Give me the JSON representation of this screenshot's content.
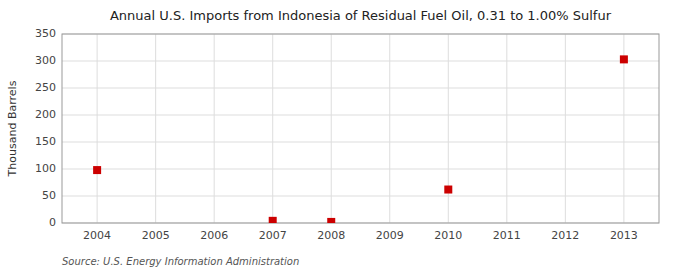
{
  "chart_data": {
    "type": "scatter",
    "title": "Annual U.S. Imports from Indonesia of Residual Fuel Oil, 0.31 to 1.00% Sulfur",
    "ylabel": "Thousand Barrels",
    "source": "Source: U.S. Energy Information Administration",
    "x": [
      2004,
      2007,
      2008,
      2010,
      2013
    ],
    "values": [
      98,
      4,
      2,
      62,
      303
    ],
    "xlim": [
      2003.4,
      2013.6
    ],
    "ylim": [
      0,
      350
    ],
    "xticks": [
      2004,
      2005,
      2006,
      2007,
      2008,
      2009,
      2010,
      2011,
      2012,
      2013
    ],
    "yticks": [
      0,
      50,
      100,
      150,
      200,
      250,
      300,
      350
    ],
    "color": "#cc0000",
    "marker": "square",
    "grid": true
  }
}
